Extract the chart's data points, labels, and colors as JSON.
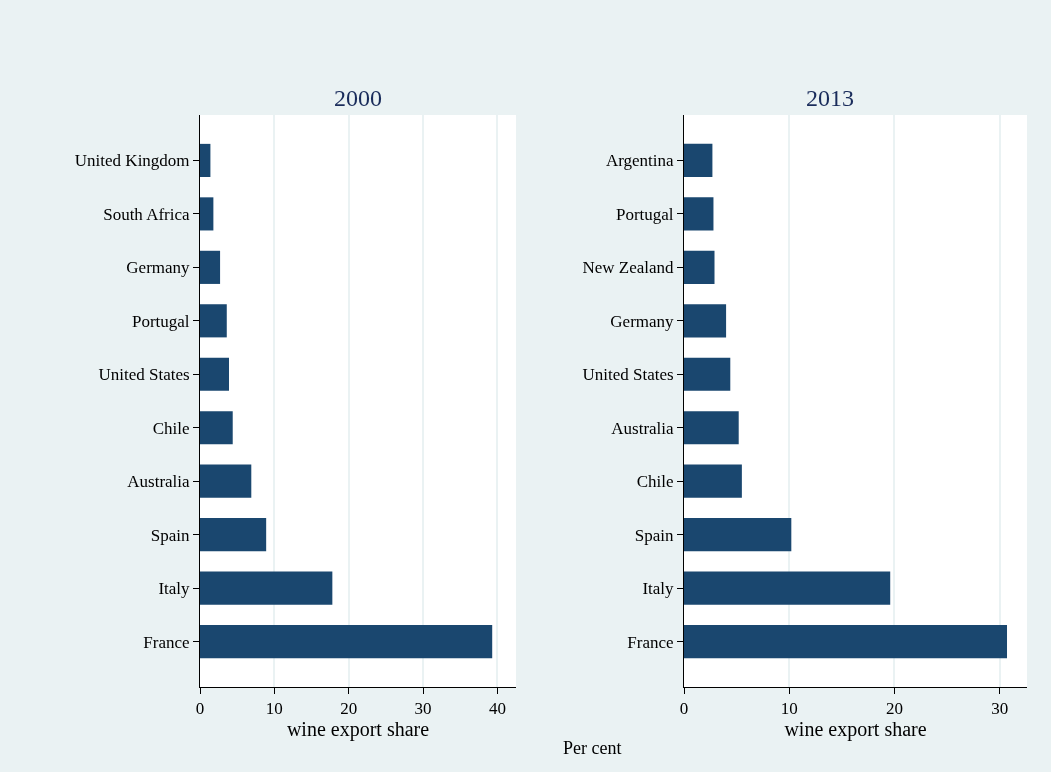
{
  "chart_data": [
    {
      "type": "bar",
      "orientation": "horizontal",
      "title": "2000",
      "xlabel": "wine export share",
      "categories": [
        "United Kingdom",
        "South Africa",
        "Germany",
        "Portugal",
        "United States",
        "Chile",
        "Australia",
        "Spain",
        "Italy",
        "France"
      ],
      "values": [
        1.4,
        1.8,
        2.7,
        3.6,
        3.9,
        4.4,
        6.9,
        8.9,
        17.8,
        39.3
      ],
      "color": "#1a476f",
      "xlim": [
        0,
        42.5
      ],
      "xticks": [
        0,
        10,
        20,
        30,
        40
      ],
      "grid": "x"
    },
    {
      "type": "bar",
      "orientation": "horizontal",
      "title": "2013",
      "xlabel": "wine export share",
      "categories": [
        "Argentina",
        "Portugal",
        "New Zealand",
        "Germany",
        "United States",
        "Australia",
        "Chile",
        "Spain",
        "Italy",
        "France"
      ],
      "values": [
        2.7,
        2.8,
        2.9,
        4.0,
        4.4,
        5.2,
        5.5,
        10.2,
        19.6,
        30.7
      ],
      "color": "#1a476f",
      "xlim": [
        0,
        32.6
      ],
      "xticks": [
        0,
        10,
        20,
        30
      ],
      "grid": "x",
      "annotations": [
        "Per cent"
      ]
    }
  ]
}
